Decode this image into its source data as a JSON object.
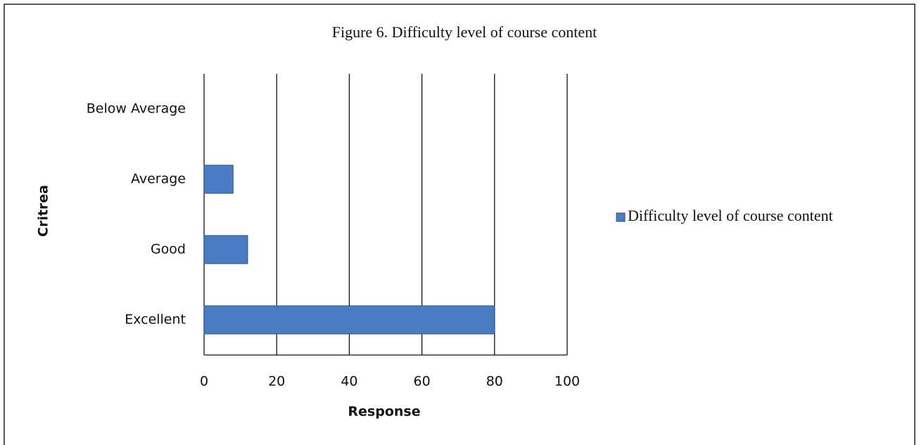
{
  "chart_data": {
    "type": "bar",
    "orientation": "horizontal",
    "title": "Figure 6. Difficulty level of course content",
    "x_label": "Response",
    "y_label": "Critrea",
    "categories": [
      "Excellent",
      "Good",
      "Average",
      "Below Average"
    ],
    "series": [
      {
        "name": "Difficulty level of course content",
        "color": "#4a7cc4",
        "values": [
          80,
          12,
          8,
          0
        ]
      }
    ],
    "xlim": [
      0,
      100
    ],
    "xticks": [
      0,
      20,
      40,
      60,
      80,
      100
    ],
    "grid": true,
    "legend": "right"
  }
}
